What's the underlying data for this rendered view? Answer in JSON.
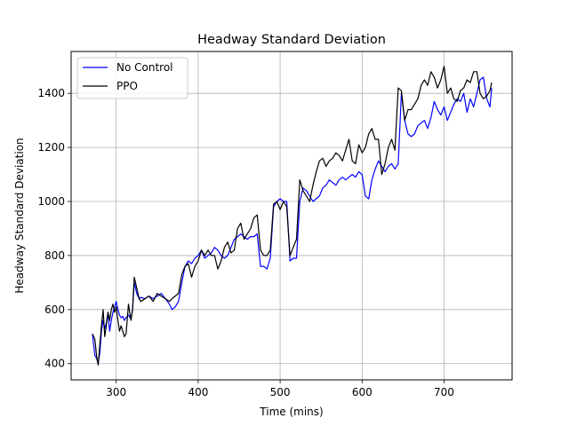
{
  "chart_data": {
    "type": "line",
    "title": "Headway Standard Deviation",
    "xlabel": "Time (mins)",
    "ylabel": "Headway Standard Deviation",
    "xlim": [
      245,
      783
    ],
    "ylim": [
      340,
      1555
    ],
    "xticks": [
      300,
      400,
      500,
      600,
      700
    ],
    "yticks": [
      400,
      600,
      800,
      1000,
      1200,
      1400
    ],
    "grid": true,
    "legend_position": "upper-left",
    "series": [
      {
        "name": "No Control",
        "color": "#0000ff",
        "x": [
          271,
          274,
          276,
          278,
          280,
          282,
          284,
          286,
          288,
          290,
          292,
          294,
          296,
          298,
          300,
          302,
          304,
          306,
          308,
          310,
          312,
          315,
          318,
          320,
          322,
          325,
          328,
          330,
          335,
          340,
          345,
          350,
          355,
          360,
          365,
          368,
          372,
          376,
          380,
          384,
          388,
          392,
          396,
          400,
          404,
          408,
          412,
          416,
          420,
          424,
          428,
          432,
          436,
          440,
          444,
          448,
          452,
          456,
          460,
          464,
          468,
          472,
          476,
          480,
          484,
          488,
          492,
          496,
          500,
          504,
          508,
          512,
          516,
          520,
          524,
          528,
          532,
          536,
          540,
          544,
          548,
          552,
          556,
          560,
          564,
          568,
          572,
          576,
          580,
          584,
          588,
          592,
          596,
          600,
          604,
          608,
          612,
          616,
          620,
          624,
          628,
          632,
          636,
          640,
          644,
          648,
          652,
          656,
          660,
          664,
          668,
          672,
          676,
          680,
          684,
          688,
          692,
          696,
          700,
          704,
          708,
          712,
          716,
          720,
          724,
          728,
          732,
          736,
          740,
          744,
          748,
          752,
          756,
          758
        ],
        "y": [
          510,
          430,
          420,
          400,
          440,
          520,
          560,
          530,
          550,
          590,
          520,
          560,
          590,
          610,
          630,
          600,
          580,
          570,
          575,
          560,
          570,
          580,
          565,
          600,
          700,
          660,
          640,
          645,
          640,
          650,
          640,
          650,
          660,
          640,
          620,
          600,
          610,
          630,
          700,
          760,
          780,
          770,
          790,
          800,
          820,
          790,
          800,
          810,
          830,
          820,
          800,
          790,
          800,
          830,
          860,
          870,
          880,
          870,
          860,
          870,
          870,
          880,
          760,
          760,
          750,
          790,
          980,
          1000,
          1010,
          1000,
          1000,
          780,
          790,
          790,
          1000,
          1050,
          1040,
          1020,
          1000,
          1010,
          1020,
          1050,
          1060,
          1080,
          1070,
          1060,
          1080,
          1090,
          1080,
          1090,
          1100,
          1090,
          1110,
          1100,
          1020,
          1010,
          1080,
          1120,
          1150,
          1130,
          1110,
          1130,
          1140,
          1120,
          1140,
          1400,
          1300,
          1250,
          1240,
          1250,
          1280,
          1290,
          1300,
          1270,
          1310,
          1370,
          1340,
          1320,
          1350,
          1300,
          1330,
          1360,
          1380,
          1370,
          1400,
          1330,
          1380,
          1350,
          1400,
          1450,
          1460,
          1380,
          1350,
          1420
        ]
      },
      {
        "name": "PPO",
        "color": "#000000",
        "x": [
          271,
          274,
          276,
          278,
          280,
          282,
          284,
          286,
          288,
          290,
          292,
          294,
          296,
          298,
          300,
          302,
          304,
          306,
          308,
          310,
          312,
          315,
          318,
          320,
          322,
          325,
          328,
          330,
          335,
          340,
          345,
          350,
          355,
          360,
          365,
          368,
          372,
          376,
          380,
          384,
          388,
          392,
          396,
          400,
          404,
          408,
          412,
          416,
          420,
          424,
          428,
          432,
          436,
          440,
          444,
          448,
          452,
          456,
          460,
          464,
          468,
          472,
          476,
          480,
          484,
          488,
          492,
          496,
          500,
          504,
          508,
          512,
          516,
          520,
          524,
          528,
          532,
          536,
          540,
          544,
          548,
          552,
          556,
          560,
          564,
          568,
          572,
          576,
          580,
          584,
          588,
          592,
          596,
          600,
          604,
          608,
          612,
          616,
          620,
          624,
          628,
          632,
          636,
          640,
          644,
          648,
          652,
          656,
          660,
          664,
          668,
          672,
          676,
          680,
          684,
          688,
          692,
          696,
          700,
          704,
          708,
          712,
          716,
          720,
          724,
          728,
          732,
          736,
          740,
          744,
          748,
          752,
          756,
          758
        ],
        "y": [
          510,
          490,
          430,
          395,
          470,
          540,
          600,
          500,
          540,
          590,
          560,
          600,
          620,
          590,
          610,
          560,
          520,
          540,
          520,
          500,
          510,
          620,
          560,
          600,
          720,
          680,
          640,
          630,
          640,
          650,
          630,
          660,
          650,
          640,
          630,
          640,
          650,
          660,
          730,
          760,
          770,
          720,
          760,
          780,
          820,
          800,
          820,
          800,
          800,
          750,
          780,
          830,
          850,
          810,
          820,
          900,
          920,
          860,
          880,
          900,
          940,
          950,
          820,
          800,
          800,
          820,
          990,
          1000,
          970,
          1000,
          980,
          800,
          830,
          860,
          1080,
          1040,
          1020,
          1000,
          1060,
          1110,
          1150,
          1160,
          1130,
          1150,
          1160,
          1180,
          1170,
          1150,
          1190,
          1230,
          1150,
          1140,
          1210,
          1180,
          1200,
          1250,
          1270,
          1230,
          1230,
          1100,
          1140,
          1200,
          1230,
          1190,
          1420,
          1410,
          1300,
          1340,
          1340,
          1360,
          1380,
          1430,
          1450,
          1430,
          1480,
          1460,
          1420,
          1450,
          1500,
          1400,
          1420,
          1380,
          1370,
          1410,
          1420,
          1450,
          1440,
          1480,
          1480,
          1400,
          1380,
          1390,
          1410,
          1440
        ]
      }
    ]
  }
}
